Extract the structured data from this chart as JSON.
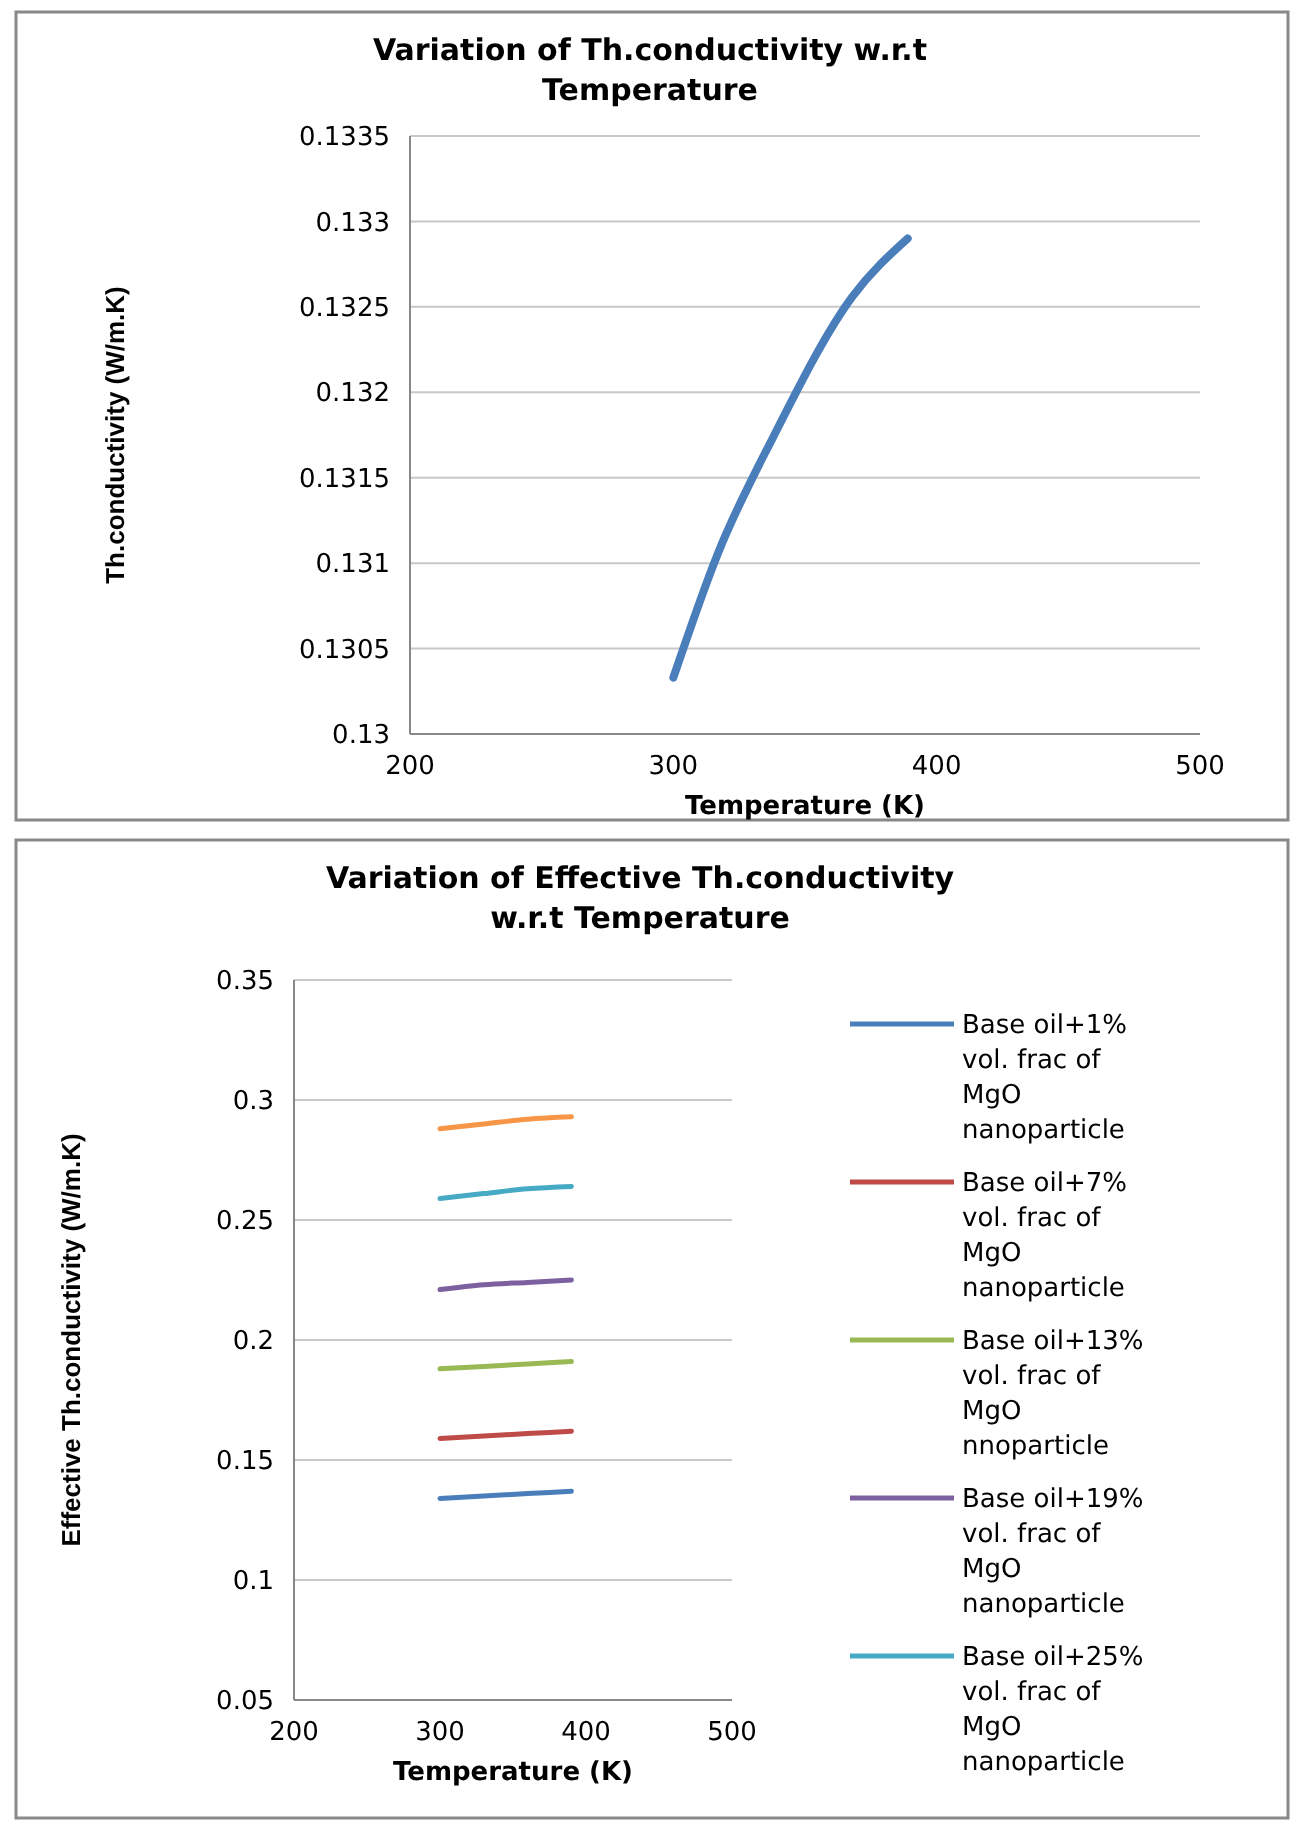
{
  "chart_data": [
    {
      "type": "line",
      "title": "Variation of Th.conductivity w.r.t Temperature",
      "xlabel": "Temperature (K)",
      "ylabel": "Th.conductivity (W/m.K)",
      "xlim": [
        200,
        500
      ],
      "xticks": [
        200,
        300,
        400,
        500
      ],
      "ylim": [
        0.13,
        0.1335
      ],
      "yticks": [
        0.13,
        0.1305,
        0.131,
        0.1315,
        0.132,
        0.1325,
        0.133,
        0.1335
      ],
      "grid": "y",
      "legend": false,
      "series": [
        {
          "color": "#4a7ebb",
          "x": [
            300,
            317,
            338,
            368,
            389
          ],
          "values": [
            0.13033,
            0.13106,
            0.13174,
            0.13256,
            0.1329
          ]
        }
      ]
    },
    {
      "type": "line",
      "title": "Variation of Effective Th.conductivity w.r.t Temperature",
      "xlabel": "Temperature (K)",
      "ylabel": "Effective Th.conductivity (W/m.K)",
      "xlim": [
        200,
        500
      ],
      "xticks": [
        200,
        300,
        400,
        500
      ],
      "ylim": [
        0.05,
        0.35
      ],
      "yticks": [
        0.05,
        0.1,
        0.15,
        0.2,
        0.25,
        0.3,
        0.35
      ],
      "grid": "y",
      "legend": "right",
      "x": [
        300,
        330,
        360,
        390
      ],
      "series": [
        {
          "name": "Base oil+1% vol. frac of MgO nanoparticle",
          "color": "#4a7ebb",
          "values": [
            0.134,
            0.135,
            0.136,
            0.137
          ]
        },
        {
          "name": "Base oil+7% vol. frac of MgO nanoparticle",
          "color": "#be4b48",
          "values": [
            0.159,
            0.16,
            0.161,
            0.162
          ]
        },
        {
          "name": "Base oil+13% vol. frac of MgO nnoparticle",
          "color": "#98b954",
          "values": [
            0.188,
            0.189,
            0.19,
            0.191
          ]
        },
        {
          "name": "Base oil+19% vol. frac of MgO nanoparticle",
          "color": "#7d60a0",
          "values": [
            0.221,
            0.223,
            0.224,
            0.225
          ]
        },
        {
          "name": "Base oil+25% vol. frac of MgO nanoparticle",
          "color": "#46aac5",
          "values": [
            0.259,
            0.261,
            0.263,
            0.264
          ]
        },
        {
          "color": "#f79646",
          "values": [
            0.288,
            0.29,
            0.292,
            0.293
          ]
        }
      ]
    }
  ]
}
